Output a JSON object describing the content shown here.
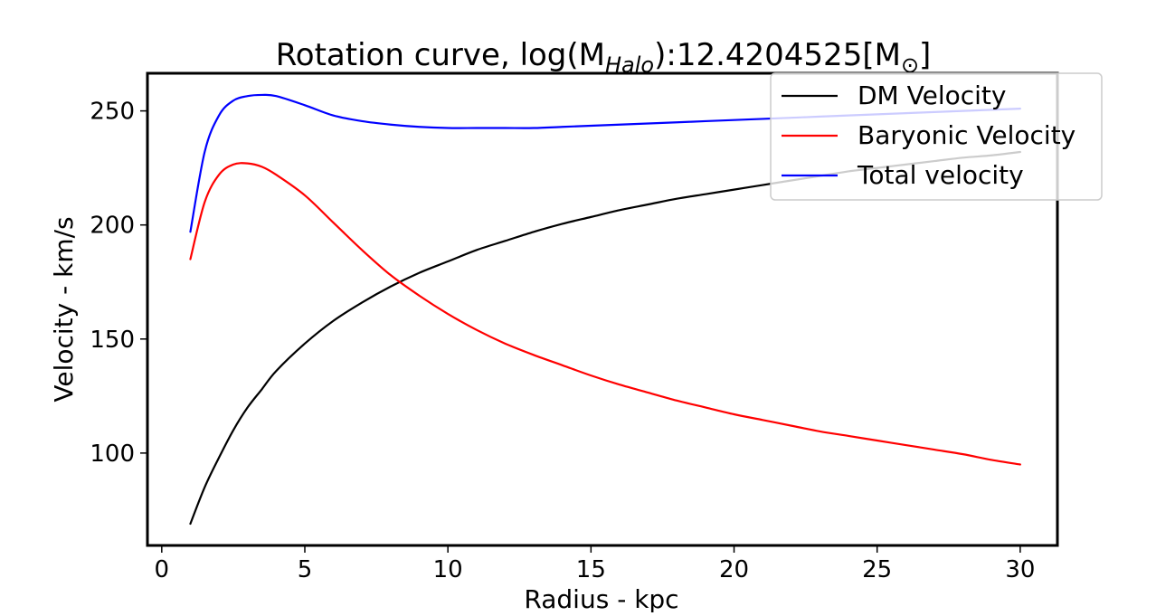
{
  "chart_data": {
    "type": "line",
    "title": {
      "prefix": "Rotation curve, log(M",
      "subscript": "Halo",
      "middle": "):12.4204525[M",
      "sun_symbol": "⊙",
      "suffix": "]"
    },
    "xlabel": "Radius - kpc",
    "ylabel": "Velocity - km/s",
    "xlim": [
      -0.5,
      31.3
    ],
    "ylim": [
      59.5,
      266.5
    ],
    "xticks": [
      0,
      5,
      10,
      15,
      20,
      25,
      30
    ],
    "yticks": [
      100,
      150,
      200,
      250
    ],
    "grid": false,
    "legend_placement": "upper-right",
    "x": [
      1,
      1.5,
      2,
      2.5,
      3,
      3.5,
      4,
      5,
      6,
      7,
      8,
      9,
      10,
      11,
      12,
      13,
      14,
      15,
      16,
      17,
      18,
      19,
      20,
      21,
      22,
      23,
      24,
      25,
      26,
      27,
      28,
      29,
      30
    ],
    "series": [
      {
        "name": "DM Velocity",
        "color": "#000000",
        "values": [
          69,
          85,
          98,
          110,
          120,
          128,
          136,
          148,
          158,
          166,
          173,
          179,
          184,
          189,
          193,
          197,
          200.5,
          203.5,
          206.5,
          209,
          211.5,
          213.5,
          215.5,
          217.5,
          219.5,
          221.5,
          223.5,
          225,
          226.5,
          228,
          229.5,
          230.5,
          232
        ]
      },
      {
        "name": "Baryonic Velocity",
        "color": "#ff0000",
        "values": [
          185,
          210,
          222,
          226.5,
          227,
          225.5,
          222,
          213,
          201,
          189,
          178,
          169,
          161,
          154,
          148,
          143,
          138.5,
          134,
          130,
          126.5,
          123,
          120,
          117,
          114.5,
          112,
          109.5,
          107.5,
          105.5,
          103.5,
          101.5,
          99.5,
          97,
          95
        ]
      },
      {
        "name": "Total velocity",
        "color": "#0000ff",
        "values": [
          197,
          232,
          248,
          254.5,
          256.5,
          257,
          256.5,
          252.5,
          248,
          245.5,
          244,
          243,
          242.5,
          242.5,
          242.5,
          242.5,
          243,
          243.5,
          244,
          244.5,
          245,
          245.5,
          246,
          246.5,
          247,
          247.5,
          248,
          248.5,
          249,
          249.5,
          250,
          250.5,
          251
        ]
      }
    ]
  }
}
